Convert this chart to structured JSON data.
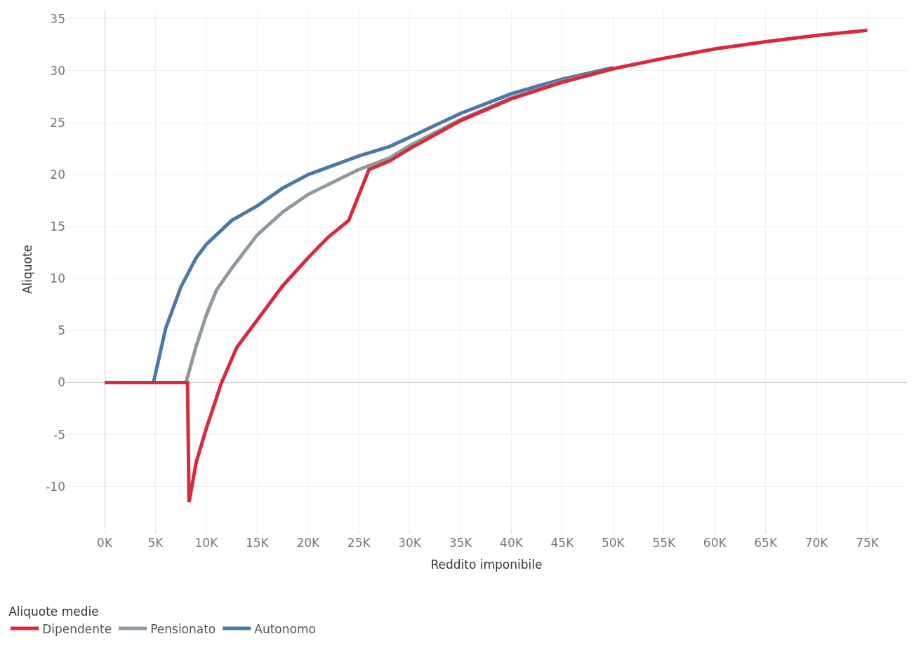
{
  "chart_data": {
    "type": "line",
    "xlabel": "Reddito imponibile",
    "ylabel": "Aliquote",
    "legend_title": "Aliquote medie",
    "xlim": [
      -3800,
      78900
    ],
    "ylim": [
      -14,
      35.8
    ],
    "xticks": [
      {
        "value": 0,
        "label": "0K"
      },
      {
        "value": 5000,
        "label": "5K"
      },
      {
        "value": 10000,
        "label": "10K"
      },
      {
        "value": 15000,
        "label": "15K"
      },
      {
        "value": 20000,
        "label": "20K"
      },
      {
        "value": 25000,
        "label": "25K"
      },
      {
        "value": 30000,
        "label": "30K"
      },
      {
        "value": 35000,
        "label": "35K"
      },
      {
        "value": 40000,
        "label": "40K"
      },
      {
        "value": 45000,
        "label": "45K"
      },
      {
        "value": 50000,
        "label": "50K"
      },
      {
        "value": 55000,
        "label": "55K"
      },
      {
        "value": 60000,
        "label": "60K"
      },
      {
        "value": 65000,
        "label": "65K"
      },
      {
        "value": 70000,
        "label": "70K"
      },
      {
        "value": 75000,
        "label": "75K"
      }
    ],
    "yticks": [
      -10,
      -5,
      0,
      5,
      10,
      15,
      20,
      25,
      30,
      35
    ],
    "grid": true,
    "legend": "bottom",
    "marker": "none",
    "line_style": "solid",
    "series": [
      {
        "name": "Dipendente",
        "color": "#d62a3e",
        "x": [
          0,
          8150,
          8300,
          9000,
          10000,
          11500,
          13000,
          15000,
          17500,
          20000,
          22000,
          24000,
          26000,
          28000,
          30000,
          35000,
          40000,
          45000,
          50000,
          55000,
          60000,
          65000,
          70000,
          75000
        ],
        "values": [
          0,
          0,
          -11.5,
          -7.7,
          -4.4,
          0,
          3.4,
          6.0,
          9.3,
          12.0,
          14.0,
          15.6,
          20.5,
          21.3,
          22.5,
          25.2,
          27.3,
          28.9,
          30.2,
          31.2,
          32.1,
          32.8,
          33.4,
          33.9
        ]
      },
      {
        "name": "Pensionato",
        "color": "#8e9a9b",
        "x": [
          8000,
          9000,
          10000,
          11000,
          12500,
          15000,
          17500,
          20000,
          25000,
          28000,
          30000,
          35000,
          40000,
          45000,
          50000
        ],
        "values": [
          0,
          3.5,
          6.5,
          8.9,
          11.0,
          14.2,
          16.4,
          18.1,
          20.5,
          21.6,
          22.8,
          25.3,
          27.4,
          29.0,
          30.2
        ]
      },
      {
        "name": "Autonomo",
        "color": "#4a78a8",
        "x": [
          4800,
          6000,
          7500,
          9000,
          10000,
          12500,
          15000,
          17500,
          20000,
          25000,
          28000,
          30000,
          35000,
          40000,
          45000,
          50000
        ],
        "values": [
          0,
          5.2,
          9.2,
          12.0,
          13.3,
          15.6,
          17.0,
          18.7,
          20.0,
          21.8,
          22.7,
          23.6,
          25.9,
          27.8,
          29.2,
          30.3
        ]
      }
    ]
  }
}
